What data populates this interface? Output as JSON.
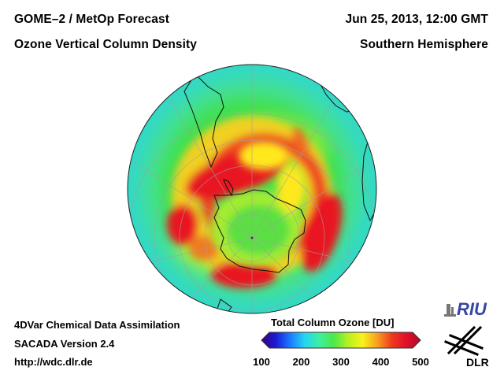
{
  "header": {
    "title_left": "GOME–2 / MetOp Forecast",
    "subtitle_left": "Ozone Vertical Column Density",
    "date_right": "Jun 25, 2013, 12:00 GMT",
    "region_right": "Southern Hemisphere"
  },
  "footer": {
    "line1": "4DVar Chemical Data Assimilation",
    "line2": "SACADA Version 2.4",
    "line3": "http://wdc.dlr.de"
  },
  "colorbar": {
    "title": "Total Column Ozone [DU]",
    "ticks": [
      "100",
      "200",
      "300",
      "400",
      "500"
    ],
    "min": 100,
    "max": 500,
    "colors": [
      "#3a007a",
      "#1b1bd6",
      "#1b7cff",
      "#23d6f2",
      "#3df0a0",
      "#4ce84a",
      "#b6f023",
      "#f8f21a",
      "#f8a020",
      "#f03a1c",
      "#e0102a",
      "#b20a2a"
    ]
  },
  "logos": {
    "riu": "RIU",
    "dlr": "DLR"
  },
  "map": {
    "projection": "orthographic",
    "center": "South Pole",
    "ocean_color": "#27d9d0",
    "land_outline_color": "#111111"
  }
}
